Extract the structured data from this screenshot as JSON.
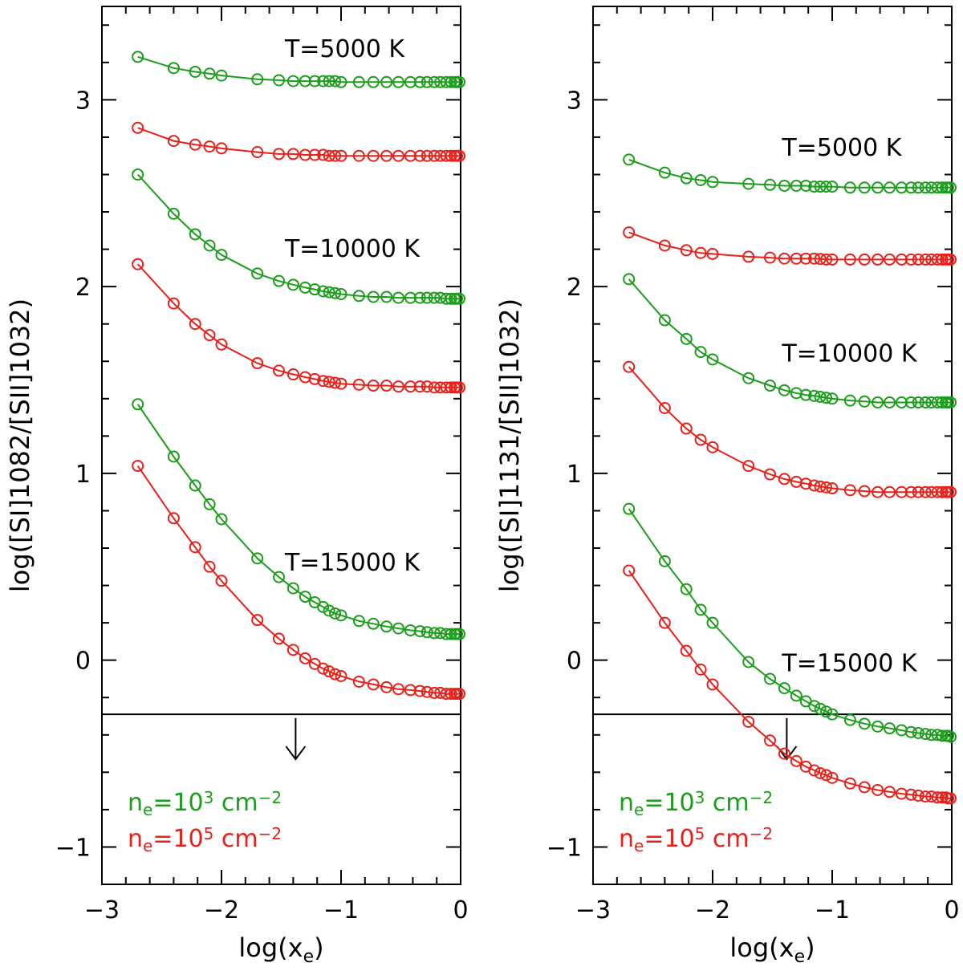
{
  "chart_data": [
    {
      "type": "line",
      "xlabel": "log(x_e)",
      "ylabel": "log([SI]1082/[SII]1032)",
      "xlim": [
        -3,
        0
      ],
      "ylim": [
        -1.2,
        3.5
      ],
      "xticks": [
        -3,
        -2,
        -1,
        0
      ],
      "xtick_labels": [
        "−3",
        "−2",
        "−1",
        "0"
      ],
      "yticks": [
        -1,
        0,
        1,
        2,
        3
      ],
      "ytick_labels": [
        "−1",
        "0",
        "1",
        "2",
        "3"
      ],
      "grid": false,
      "marker": "open circle",
      "colors": {
        "ne_1e3": "#1a9e1a",
        "ne_1e5": "#e8201a",
        "reference": "#000000"
      },
      "x": [
        -2.7,
        -2.4,
        -2.22,
        -2.1,
        -2.0,
        -1.7,
        -1.52,
        -1.4,
        -1.3,
        -1.22,
        -1.15,
        -1.1,
        -1.05,
        -1.0,
        -0.85,
        -0.73,
        -0.62,
        -0.52,
        -0.42,
        -0.34,
        -0.28,
        -0.22,
        -0.17,
        -0.12,
        -0.08,
        -0.05,
        -0.03,
        -0.01
      ],
      "series": [
        {
          "group": "T=5000 K",
          "density": "ne=10^3",
          "values": [
            3.23,
            3.17,
            3.15,
            3.14,
            3.13,
            3.11,
            3.105,
            3.1,
            3.1,
            3.1,
            3.1,
            3.1,
            3.1,
            3.095,
            3.095,
            3.095,
            3.095,
            3.095,
            3.095,
            3.095,
            3.095,
            3.095,
            3.095,
            3.095,
            3.095,
            3.095,
            3.095,
            3.095
          ]
        },
        {
          "group": "T=5000 K",
          "density": "ne=10^5",
          "values": [
            2.85,
            2.78,
            2.76,
            2.75,
            2.74,
            2.72,
            2.71,
            2.71,
            2.705,
            2.705,
            2.705,
            2.7,
            2.7,
            2.7,
            2.7,
            2.7,
            2.7,
            2.7,
            2.7,
            2.7,
            2.7,
            2.7,
            2.7,
            2.7,
            2.7,
            2.7,
            2.7,
            2.7
          ]
        },
        {
          "group": "T=10000 K",
          "density": "ne=10^3",
          "values": [
            2.6,
            2.39,
            2.28,
            2.22,
            2.17,
            2.07,
            2.03,
            2.01,
            1.995,
            1.985,
            1.975,
            1.97,
            1.965,
            1.96,
            1.95,
            1.945,
            1.945,
            1.94,
            1.94,
            1.94,
            1.94,
            1.94,
            1.94,
            1.935,
            1.935,
            1.935,
            1.935,
            1.935
          ]
        },
        {
          "group": "T=10000 K",
          "density": "ne=10^5",
          "values": [
            2.12,
            1.91,
            1.8,
            1.74,
            1.69,
            1.59,
            1.55,
            1.53,
            1.515,
            1.505,
            1.495,
            1.49,
            1.485,
            1.48,
            1.475,
            1.47,
            1.47,
            1.465,
            1.465,
            1.465,
            1.465,
            1.46,
            1.46,
            1.46,
            1.46,
            1.46,
            1.46,
            1.46
          ]
        },
        {
          "group": "T=15000 K",
          "density": "ne=10^3",
          "values": [
            1.37,
            1.09,
            0.935,
            0.835,
            0.755,
            0.545,
            0.445,
            0.385,
            0.34,
            0.31,
            0.285,
            0.265,
            0.25,
            0.24,
            0.21,
            0.195,
            0.18,
            0.17,
            0.16,
            0.155,
            0.15,
            0.145,
            0.145,
            0.14,
            0.14,
            0.14,
            0.14,
            0.14
          ]
        },
        {
          "group": "T=15000 K",
          "density": "ne=10^5",
          "values": [
            1.04,
            0.76,
            0.605,
            0.5,
            0.425,
            0.215,
            0.115,
            0.055,
            0.01,
            -0.02,
            -0.045,
            -0.06,
            -0.075,
            -0.085,
            -0.115,
            -0.13,
            -0.145,
            -0.155,
            -0.16,
            -0.165,
            -0.17,
            -0.175,
            -0.175,
            -0.18,
            -0.18,
            -0.18,
            -0.18,
            -0.18
          ]
        }
      ],
      "labels": [
        {
          "text": "T=5000 K",
          "x": -1.47,
          "y": 3.23
        },
        {
          "text": "T=10000 K",
          "x": -1.47,
          "y": 2.16
        },
        {
          "text": "T=15000 K",
          "x": -1.47,
          "y": 0.48
        }
      ],
      "reference_line_y": -0.29,
      "arrow": {
        "x": -1.38,
        "y_from": -0.31,
        "y_to": -0.53
      },
      "legend": [
        {
          "base": "n",
          "sub": "e",
          "mid": "=10",
          "sup": "3",
          "unit": " cm",
          "unit_sup": "−2",
          "color": "#1a9e1a"
        },
        {
          "base": "n",
          "sub": "e",
          "mid": "=10",
          "sup": "5",
          "unit": " cm",
          "unit_sup": "−2",
          "color": "#e8201a"
        }
      ],
      "legend_placement": "bottom-left"
    },
    {
      "type": "line",
      "xlabel": "log(x_e)",
      "ylabel": "log([SI]1131/[SII]1032)",
      "xlim": [
        -3,
        0
      ],
      "ylim": [
        -1.2,
        3.5
      ],
      "xticks": [
        -3,
        -2,
        -1,
        0
      ],
      "xtick_labels": [
        "−3",
        "−2",
        "−1",
        "0"
      ],
      "yticks": [
        -1,
        0,
        1,
        2,
        3
      ],
      "ytick_labels": [
        "−1",
        "0",
        "1",
        "2",
        "3"
      ],
      "grid": false,
      "marker": "open circle",
      "colors": {
        "ne_1e3": "#1a9e1a",
        "ne_1e5": "#e8201a",
        "reference": "#000000"
      },
      "x": [
        -2.7,
        -2.4,
        -2.22,
        -2.1,
        -2.0,
        -1.7,
        -1.52,
        -1.4,
        -1.3,
        -1.22,
        -1.15,
        -1.1,
        -1.05,
        -1.0,
        -0.85,
        -0.73,
        -0.62,
        -0.52,
        -0.42,
        -0.34,
        -0.28,
        -0.22,
        -0.17,
        -0.12,
        -0.08,
        -0.05,
        -0.03,
        -0.01
      ],
      "series": [
        {
          "group": "T=5000 K",
          "density": "ne=10^3",
          "values": [
            2.68,
            2.61,
            2.58,
            2.57,
            2.56,
            2.55,
            2.545,
            2.54,
            2.54,
            2.54,
            2.535,
            2.535,
            2.535,
            2.535,
            2.53,
            2.53,
            2.53,
            2.53,
            2.53,
            2.53,
            2.53,
            2.53,
            2.53,
            2.53,
            2.53,
            2.53,
            2.53,
            2.53
          ]
        },
        {
          "group": "T=5000 K",
          "density": "ne=10^5",
          "values": [
            2.29,
            2.22,
            2.195,
            2.18,
            2.175,
            2.16,
            2.155,
            2.15,
            2.15,
            2.15,
            2.15,
            2.148,
            2.145,
            2.145,
            2.145,
            2.145,
            2.145,
            2.145,
            2.145,
            2.145,
            2.145,
            2.145,
            2.145,
            2.145,
            2.145,
            2.145,
            2.145,
            2.145
          ]
        },
        {
          "group": "T=10000 K",
          "density": "ne=10^3",
          "values": [
            2.04,
            1.82,
            1.72,
            1.65,
            1.61,
            1.51,
            1.47,
            1.445,
            1.43,
            1.42,
            1.415,
            1.41,
            1.405,
            1.4,
            1.39,
            1.385,
            1.38,
            1.38,
            1.38,
            1.38,
            1.38,
            1.38,
            1.38,
            1.38,
            1.38,
            1.38,
            1.38,
            1.38
          ]
        },
        {
          "group": "T=10000 K",
          "density": "ne=10^5",
          "values": [
            1.57,
            1.35,
            1.24,
            1.18,
            1.14,
            1.04,
            0.995,
            0.97,
            0.955,
            0.945,
            0.935,
            0.93,
            0.925,
            0.92,
            0.91,
            0.905,
            0.9,
            0.9,
            0.9,
            0.9,
            0.9,
            0.9,
            0.9,
            0.9,
            0.9,
            0.9,
            0.9,
            0.9
          ]
        },
        {
          "group": "T=15000 K",
          "density": "ne=10^3",
          "values": [
            0.81,
            0.53,
            0.38,
            0.27,
            0.2,
            -0.01,
            -0.1,
            -0.15,
            -0.19,
            -0.22,
            -0.245,
            -0.26,
            -0.275,
            -0.29,
            -0.32,
            -0.34,
            -0.355,
            -0.365,
            -0.375,
            -0.385,
            -0.39,
            -0.395,
            -0.4,
            -0.4,
            -0.405,
            -0.405,
            -0.405,
            -0.41
          ]
        },
        {
          "group": "T=15000 K",
          "density": "ne=10^5",
          "values": [
            0.48,
            0.2,
            0.05,
            -0.05,
            -0.13,
            -0.33,
            -0.43,
            -0.5,
            -0.54,
            -0.57,
            -0.59,
            -0.605,
            -0.615,
            -0.63,
            -0.66,
            -0.68,
            -0.695,
            -0.705,
            -0.715,
            -0.72,
            -0.725,
            -0.73,
            -0.73,
            -0.735,
            -0.735,
            -0.735,
            -0.74,
            -0.74
          ]
        }
      ],
      "labels": [
        {
          "text": "T=5000 K",
          "x": -1.42,
          "y": 2.7
        },
        {
          "text": "T=10000 K",
          "x": -1.42,
          "y": 1.6
        },
        {
          "text": "T=15000 K",
          "x": -1.42,
          "y": -0.06
        }
      ],
      "reference_line_y": -0.29,
      "arrow": {
        "x": -1.38,
        "y_from": -0.31,
        "y_to": -0.53
      },
      "legend": [
        {
          "base": "n",
          "sub": "e",
          "mid": "=10",
          "sup": "3",
          "unit": " cm",
          "unit_sup": "−2",
          "color": "#1a9e1a"
        },
        {
          "base": "n",
          "sub": "e",
          "mid": "=10",
          "sup": "5",
          "unit": " cm",
          "unit_sup": "−2",
          "color": "#e8201a"
        }
      ],
      "legend_placement": "bottom-left"
    }
  ]
}
